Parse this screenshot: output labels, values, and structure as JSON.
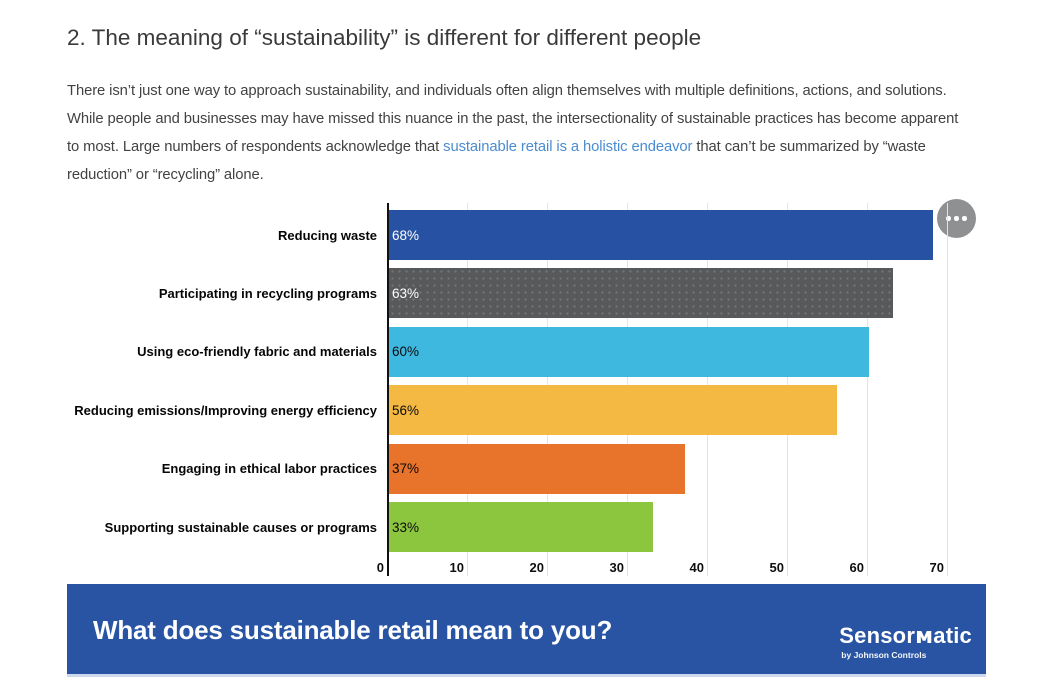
{
  "heading": {
    "text": "2. The meaning of “sustainability” is different for different people"
  },
  "intro": {
    "text_before": "There isn’t just one way to approach sustainability, and individuals often align themselves with multiple definitions, actions, and solutions. While people and businesses may have missed this nuance in the past, the intersectionality of sustainable practices has become apparent to most. Large numbers of respondents acknowledge that ",
    "link_text": "sustainable retail is a holistic endeavor",
    "text_after": " that can’t be summarized by “waste reduction” or “recycling” alone.",
    "link_color": "#4a8cd2"
  },
  "chart_data": {
    "type": "bar",
    "orientation": "horizontal",
    "title": "",
    "xlabel": "",
    "ylabel": "",
    "categories": [
      "Reducing waste",
      "Participating in recycling programs",
      "Using eco-friendly fabric and materials",
      "Reducing emissions/Improving energy efficiency",
      "Engaging in ethical labor practices",
      "Supporting sustainable causes or programs"
    ],
    "values": [
      68,
      63,
      60,
      56,
      37,
      33
    ],
    "value_labels": [
      "68%",
      "63%",
      "60%",
      "56%",
      "37%",
      "33%"
    ],
    "bar_colors": [
      "#2752a3",
      "#58595b",
      "#3fb8e0",
      "#f4b942",
      "#e8732a",
      "#8cc63f"
    ],
    "value_label_colors": [
      "#ffffff",
      "#ffffff",
      "#0a0a0a",
      "#0a0a0a",
      "#0a0a0a",
      "#0a0a0a"
    ],
    "xticks": [
      0,
      10,
      20,
      30,
      40,
      50,
      60,
      70
    ],
    "xlim": [
      0,
      75
    ],
    "grid": true,
    "legend": false
  },
  "chart_ui": {
    "menu_tooltip": "chart options"
  },
  "banner": {
    "question": "What does sustainable retail mean to you?",
    "background": "#2854a3",
    "logo": {
      "name_prefix": "Sensor",
      "name_m": "ᴍ",
      "name_suffix": "atic",
      "byline": "by Johnson Controls"
    }
  }
}
